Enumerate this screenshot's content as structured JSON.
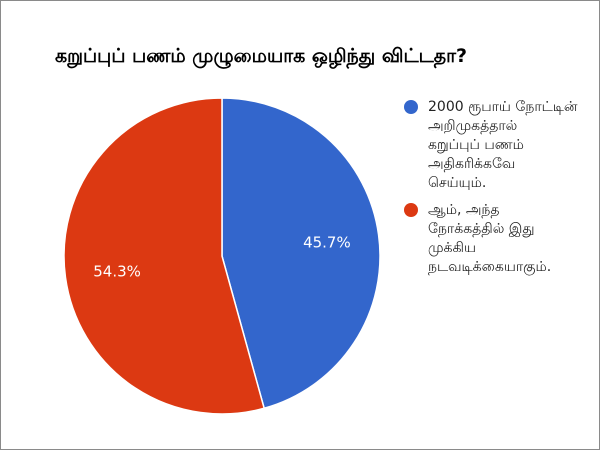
{
  "chart_data": {
    "type": "pie",
    "title": "கறுப்புப் பணம் முழுமையாக ஒழிந்து விட்டதா?",
    "legend_position": "right",
    "slices": [
      {
        "label": "2000 ரூபாய் நோட்டின்\nஅறிமுகத்தால்\nகறுப்புப் பணம்\nஅதிகரிக்கவே\nசெய்யும்.",
        "value": 45.7,
        "value_label": "45.7%",
        "color": "#3366cc"
      },
      {
        "label": "ஆம், அந்த\nநோக்கத்தில் இது\nமுக்கிய\nநடவடிக்கையாகும்.",
        "value": 54.3,
        "value_label": "54.3%",
        "color": "#dc3912"
      }
    ]
  }
}
